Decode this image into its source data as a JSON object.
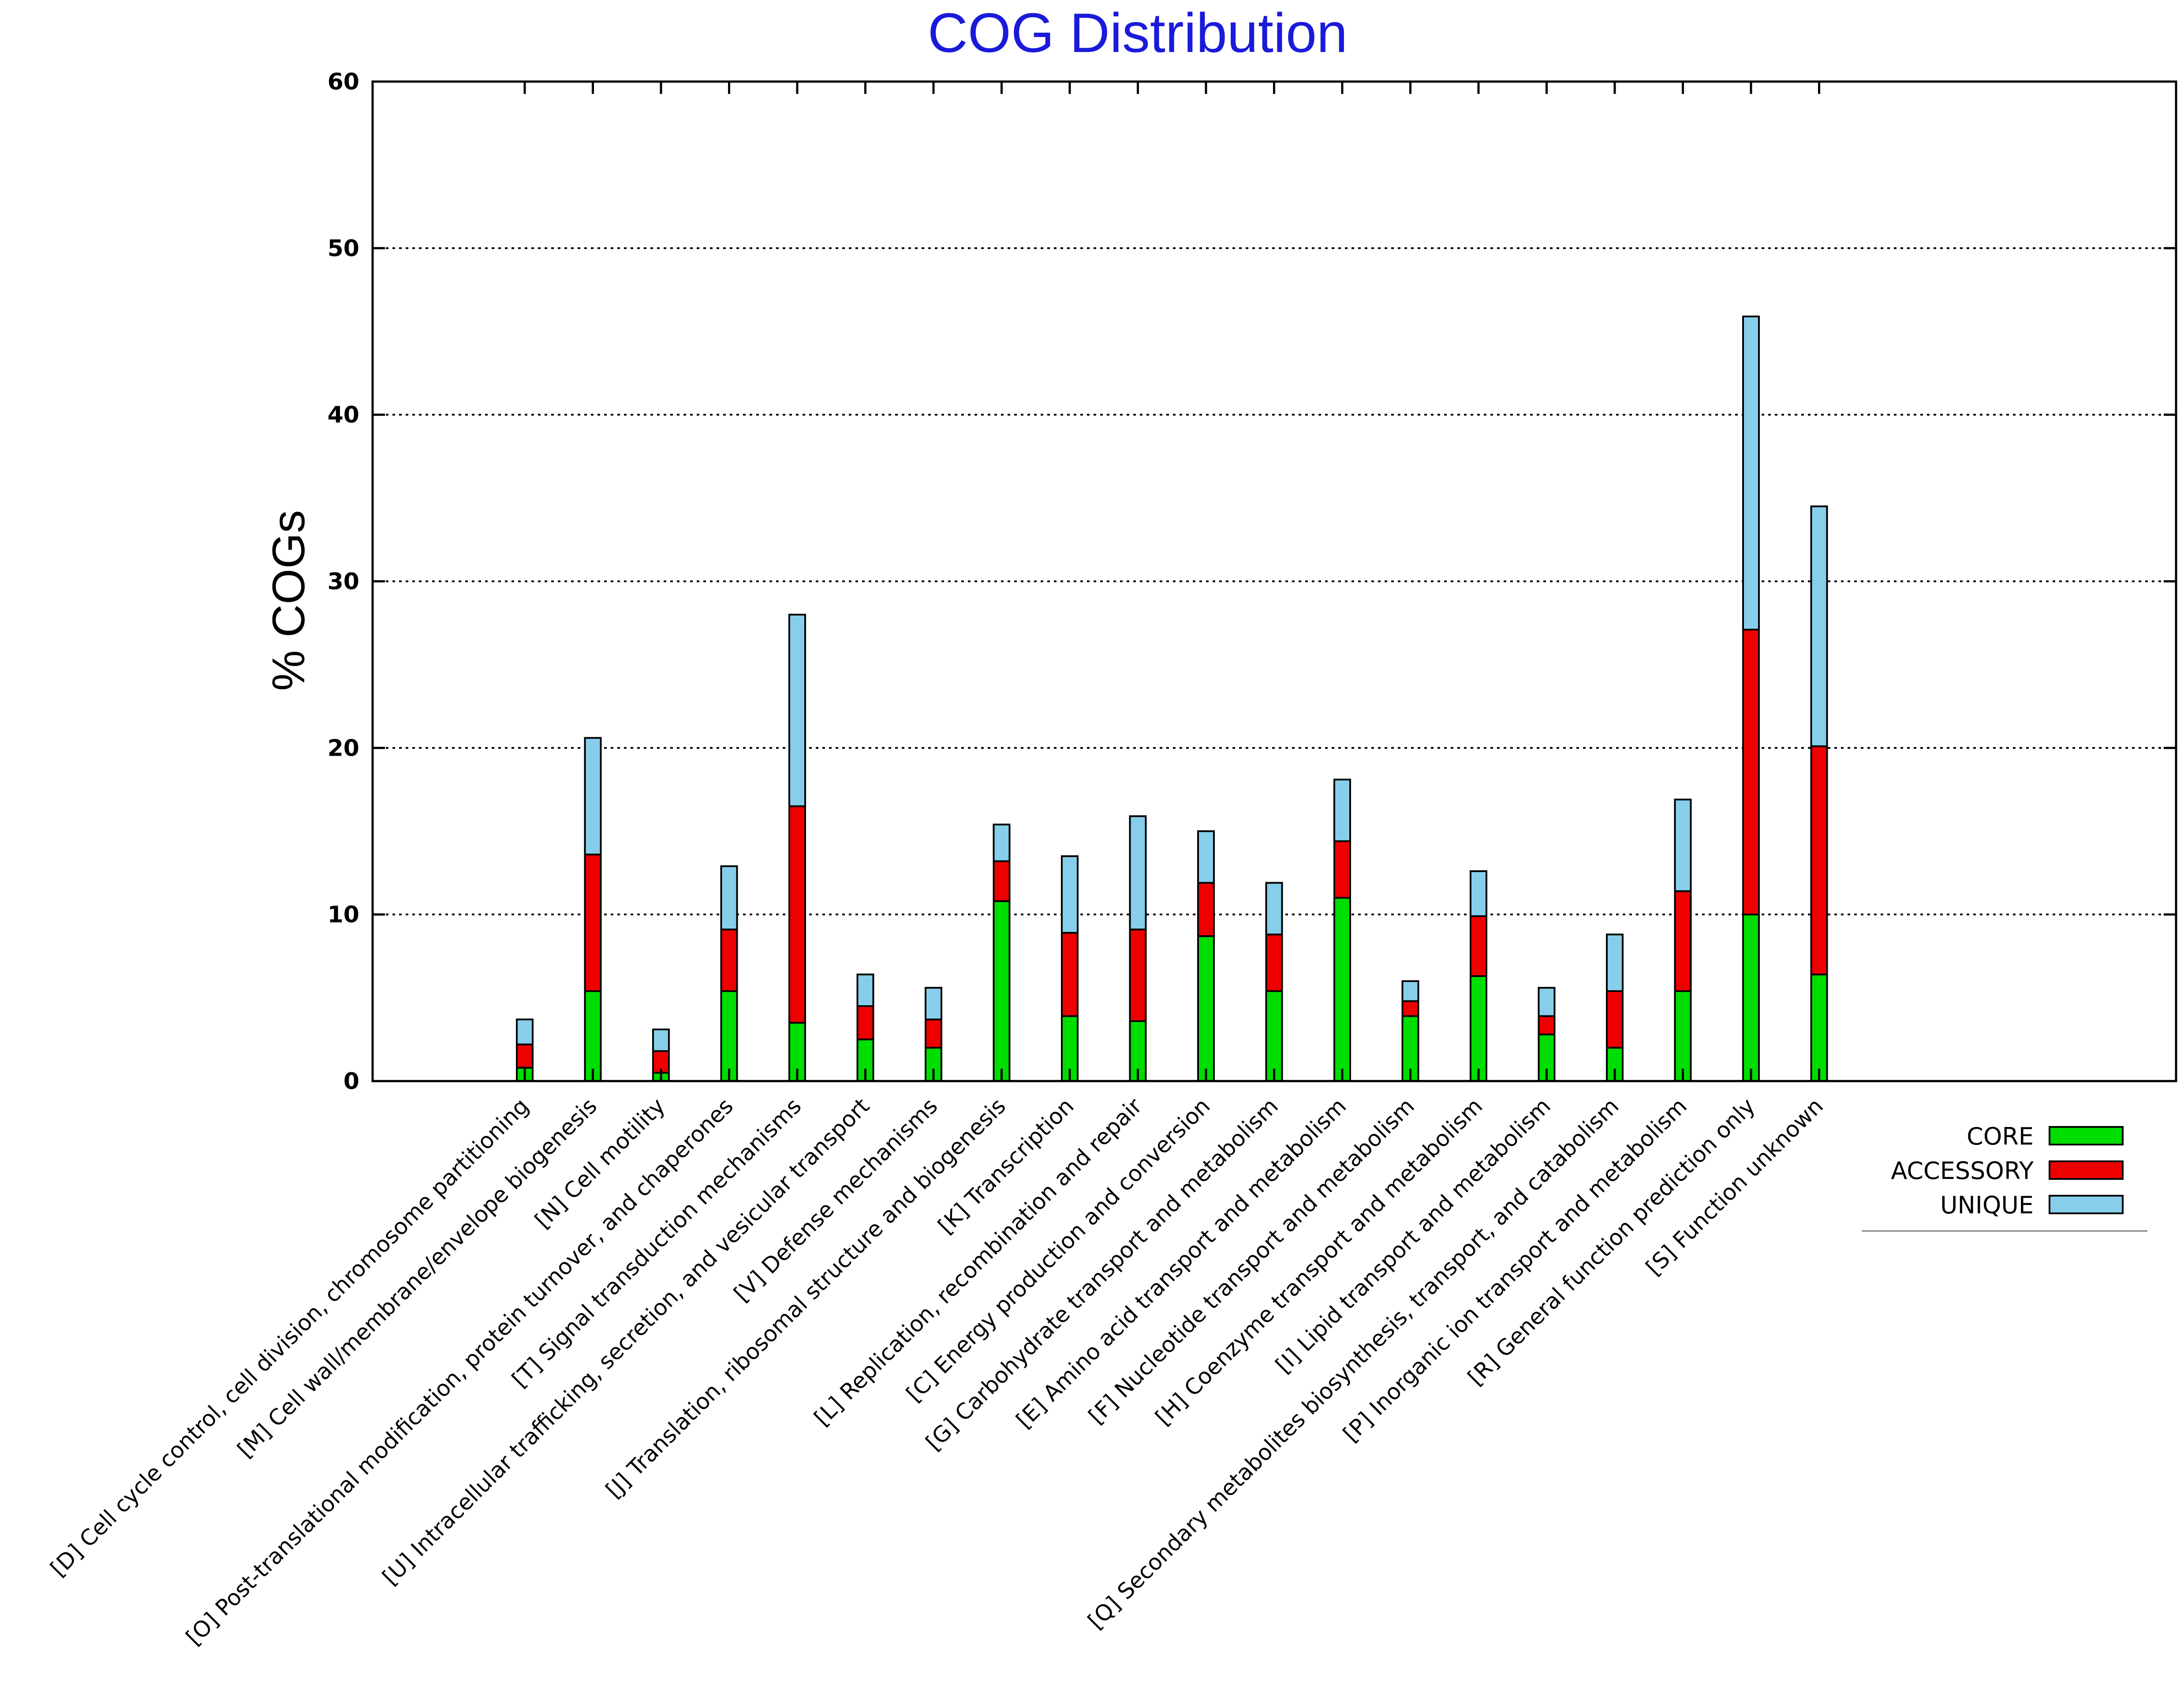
{
  "chart_data": {
    "type": "bar",
    "stacked": true,
    "title": "COG Distribution",
    "xlabel": "",
    "ylabel": "% COGs",
    "ylim": [
      0,
      60
    ],
    "yticks": [
      0,
      10,
      20,
      30,
      40,
      50,
      60
    ],
    "grid": true,
    "legend_position": "bottom-right",
    "categories": [
      "[D] Cell cycle control, cell division, chromosome partitioning",
      "[M] Cell wall/membrane/envelope biogenesis",
      "[N] Cell motility",
      "[O] Post-translational modification, protein turnover, and chaperones",
      "[T] Signal transduction mechanisms",
      "[U] Intracellular trafficking, secretion, and vesicular transport",
      "[V] Defense mechanisms",
      "[J] Translation, ribosomal structure and biogenesis",
      "[K] Transcription",
      "[L] Replication, recombination and repair",
      "[C] Energy production and conversion",
      "[G] Carbohydrate transport and metabolism",
      "[E] Amino acid transport and metabolism",
      "[F] Nucleotide transport and metabolism",
      "[H] Coenzyme transport and metabolism",
      "[I] Lipid transport and metabolism",
      "[Q] Secondary metabolites biosynthesis, transport, and catabolism",
      "[P] Inorganic ion transport and metabolism",
      "[R] General function prediction only",
      "[S] Function unknown"
    ],
    "series": [
      {
        "name": "CORE",
        "color": "#00dd00",
        "values": [
          0.8,
          5.4,
          0.5,
          5.4,
          3.5,
          2.5,
          2.0,
          10.8,
          3.9,
          3.6,
          8.7,
          5.4,
          11.0,
          3.9,
          6.3,
          2.8,
          2.0,
          5.4,
          10.0,
          6.4
        ]
      },
      {
        "name": "ACCESSORY",
        "color": "#ee0000",
        "values": [
          1.4,
          8.2,
          1.3,
          3.7,
          13.0,
          2.0,
          1.7,
          2.4,
          5.0,
          5.5,
          3.2,
          3.4,
          3.4,
          0.9,
          3.6,
          1.1,
          3.4,
          6.0,
          17.1,
          13.7
        ]
      },
      {
        "name": "UNIQUE",
        "color": "#87ceeb",
        "values": [
          1.5,
          7.0,
          1.3,
          3.8,
          11.5,
          1.9,
          1.9,
          2.2,
          4.6,
          6.8,
          3.1,
          3.1,
          3.7,
          1.2,
          2.7,
          1.7,
          3.4,
          5.5,
          18.8,
          14.4
        ]
      }
    ]
  }
}
